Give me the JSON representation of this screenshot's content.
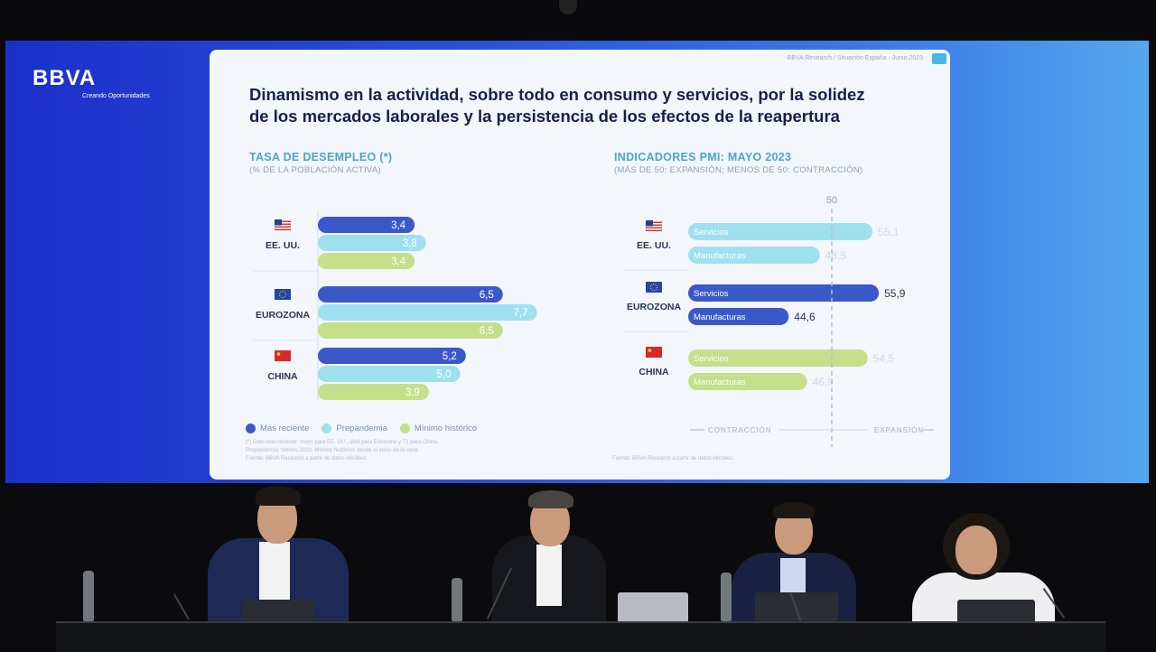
{
  "brand": {
    "logo": "BBVA",
    "tagline": "Creando Oportunidades"
  },
  "slide": {
    "header_meta": "BBVA Research / Situación España · Junio 2023",
    "title_line1": "Dinamismo en la actividad, sobre todo en consumo y servicios, por la solidez",
    "title_line2": "de los mercados laborales y la persistencia de los efectos de la reapertura",
    "left_title": "TASA DE DESEMPLEO (*)",
    "left_subtitle": "(% DE LA POBLACIÓN ACTIVA)",
    "right_title": "INDICADORES PMI: MAYO 2023",
    "right_subtitle": "(MÁS DE 50: EXPANSIÓN; MENOS DE 50: CONTRACCIÓN)",
    "legend": [
      "Más reciente",
      "Prepandemia",
      "Mínimo histórico"
    ],
    "footnote_left_1": "(*) Dato más reciente: mayo para EE. UU., abril para Eurozona y T1 para China.",
    "footnote_left_2": "Prepandemia: febrero 2020. Mínimo histórico: desde el inicio de la serie.",
    "footnote_left_3": "Fuente: BBVA Research a partir de datos oficiales.",
    "footnote_right": "Fuente: BBVA Research a partir de datos oficiales.",
    "axis_left_label": "CONTRACCIÓN",
    "axis_right_label": "EXPANSIÓN"
  },
  "colors": {
    "recent": "#3b58c9",
    "prepandemic": "#9fe0ef",
    "min": "#c5df8a",
    "label_bg": "#dfe6ef"
  },
  "chart_data": [
    {
      "type": "bar",
      "title": "TASA DE DESEMPLEO (*)",
      "subtitle": "(% DE LA POBLACIÓN ACTIVA)",
      "orientation": "horizontal",
      "categories": [
        "EE. UU.",
        "EUROZONA",
        "CHINA"
      ],
      "series": [
        {
          "name": "Más reciente",
          "values": [
            3.4,
            6.5,
            5.2
          ],
          "labels": [
            "3,4",
            "6,5",
            "5,2"
          ]
        },
        {
          "name": "Prepandemia",
          "values": [
            3.8,
            7.7,
            5.0
          ],
          "labels": [
            "3,8",
            "7,7",
            "5,0"
          ]
        },
        {
          "name": "Mínimo histórico",
          "values": [
            3.4,
            6.5,
            3.9
          ],
          "labels": [
            "3,4",
            "6,5",
            "3,9"
          ]
        }
      ],
      "xlim": [
        0,
        8
      ],
      "legend_position": "bottom-left"
    },
    {
      "type": "bar",
      "title": "INDICADORES PMI: MAYO 2023",
      "subtitle": "(MÁS DE 50: EXPANSIÓN; MENOS DE 50: CONTRACCIÓN)",
      "orientation": "horizontal",
      "reference_line": 50,
      "reference_label": "50",
      "xlim": [
        32,
        58
      ],
      "groups": [
        {
          "name": "EE. UU.",
          "color": "prepandemic",
          "bars": [
            {
              "label": "Servicios",
              "value": 55.1,
              "value_label": "55,1"
            },
            {
              "label": "Manufacturas",
              "value": 48.5,
              "value_label": "48,5"
            }
          ]
        },
        {
          "name": "EUROZONA",
          "color": "recent",
          "bars": [
            {
              "label": "Servicios",
              "value": 55.9,
              "value_label": "55,9"
            },
            {
              "label": "Manufacturas",
              "value": 44.6,
              "value_label": "44,6"
            }
          ]
        },
        {
          "name": "CHINA",
          "color": "min",
          "bars": [
            {
              "label": "Servicios",
              "value": 54.5,
              "value_label": "54,5"
            },
            {
              "label": "Manufacturas",
              "value": 46.9,
              "value_label": "46,9"
            }
          ]
        }
      ]
    }
  ]
}
